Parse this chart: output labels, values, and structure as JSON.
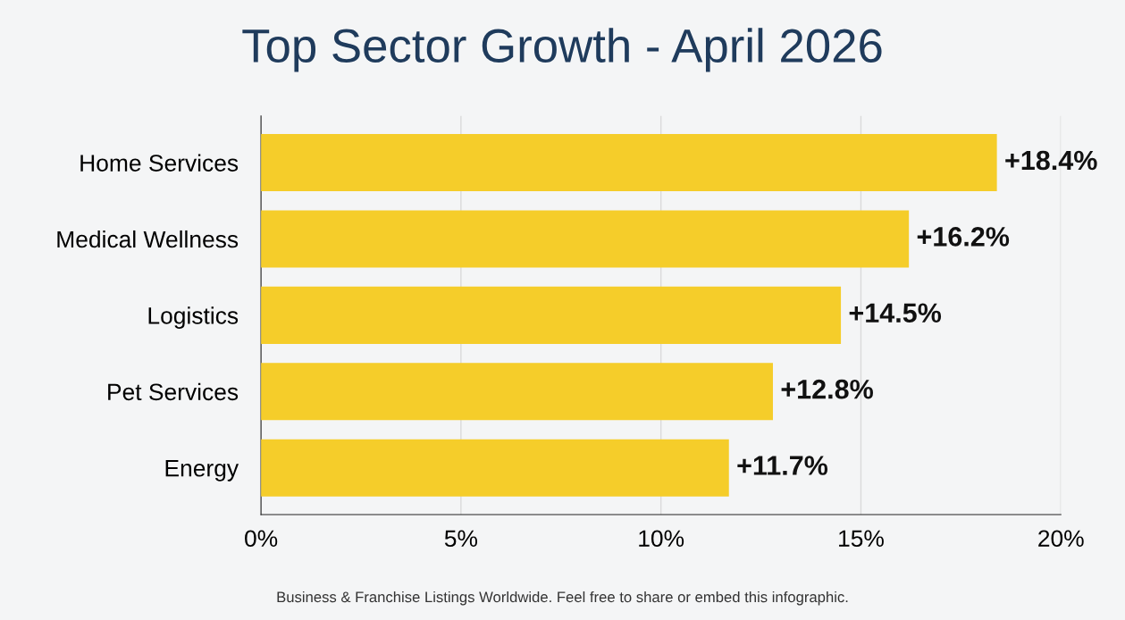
{
  "chart_data": {
    "type": "bar",
    "orientation": "horizontal",
    "title": "Top Sector Growth - April 2026",
    "categories": [
      "Home Services",
      "Medical Wellness",
      "Logistics",
      "Pet Services",
      "Energy"
    ],
    "values": [
      18.4,
      16.2,
      14.5,
      12.8,
      11.7
    ],
    "value_labels": [
      "+18.4%",
      "+16.2%",
      "+14.5%",
      "+12.8%",
      "+11.7%"
    ],
    "color": "#f5cd2a",
    "xlim": [
      0,
      20
    ],
    "xticks": [
      {
        "value": 0,
        "label": "0%"
      },
      {
        "value": 5,
        "label": "5%"
      },
      {
        "value": 10,
        "label": "10%"
      },
      {
        "value": 15,
        "label": "15%"
      },
      {
        "value": 20,
        "label": "20%"
      }
    ],
    "grid": "x",
    "annotations": [
      "Business & Franchise Listings Worldwide. Feel free to share or embed this infographic."
    ]
  }
}
